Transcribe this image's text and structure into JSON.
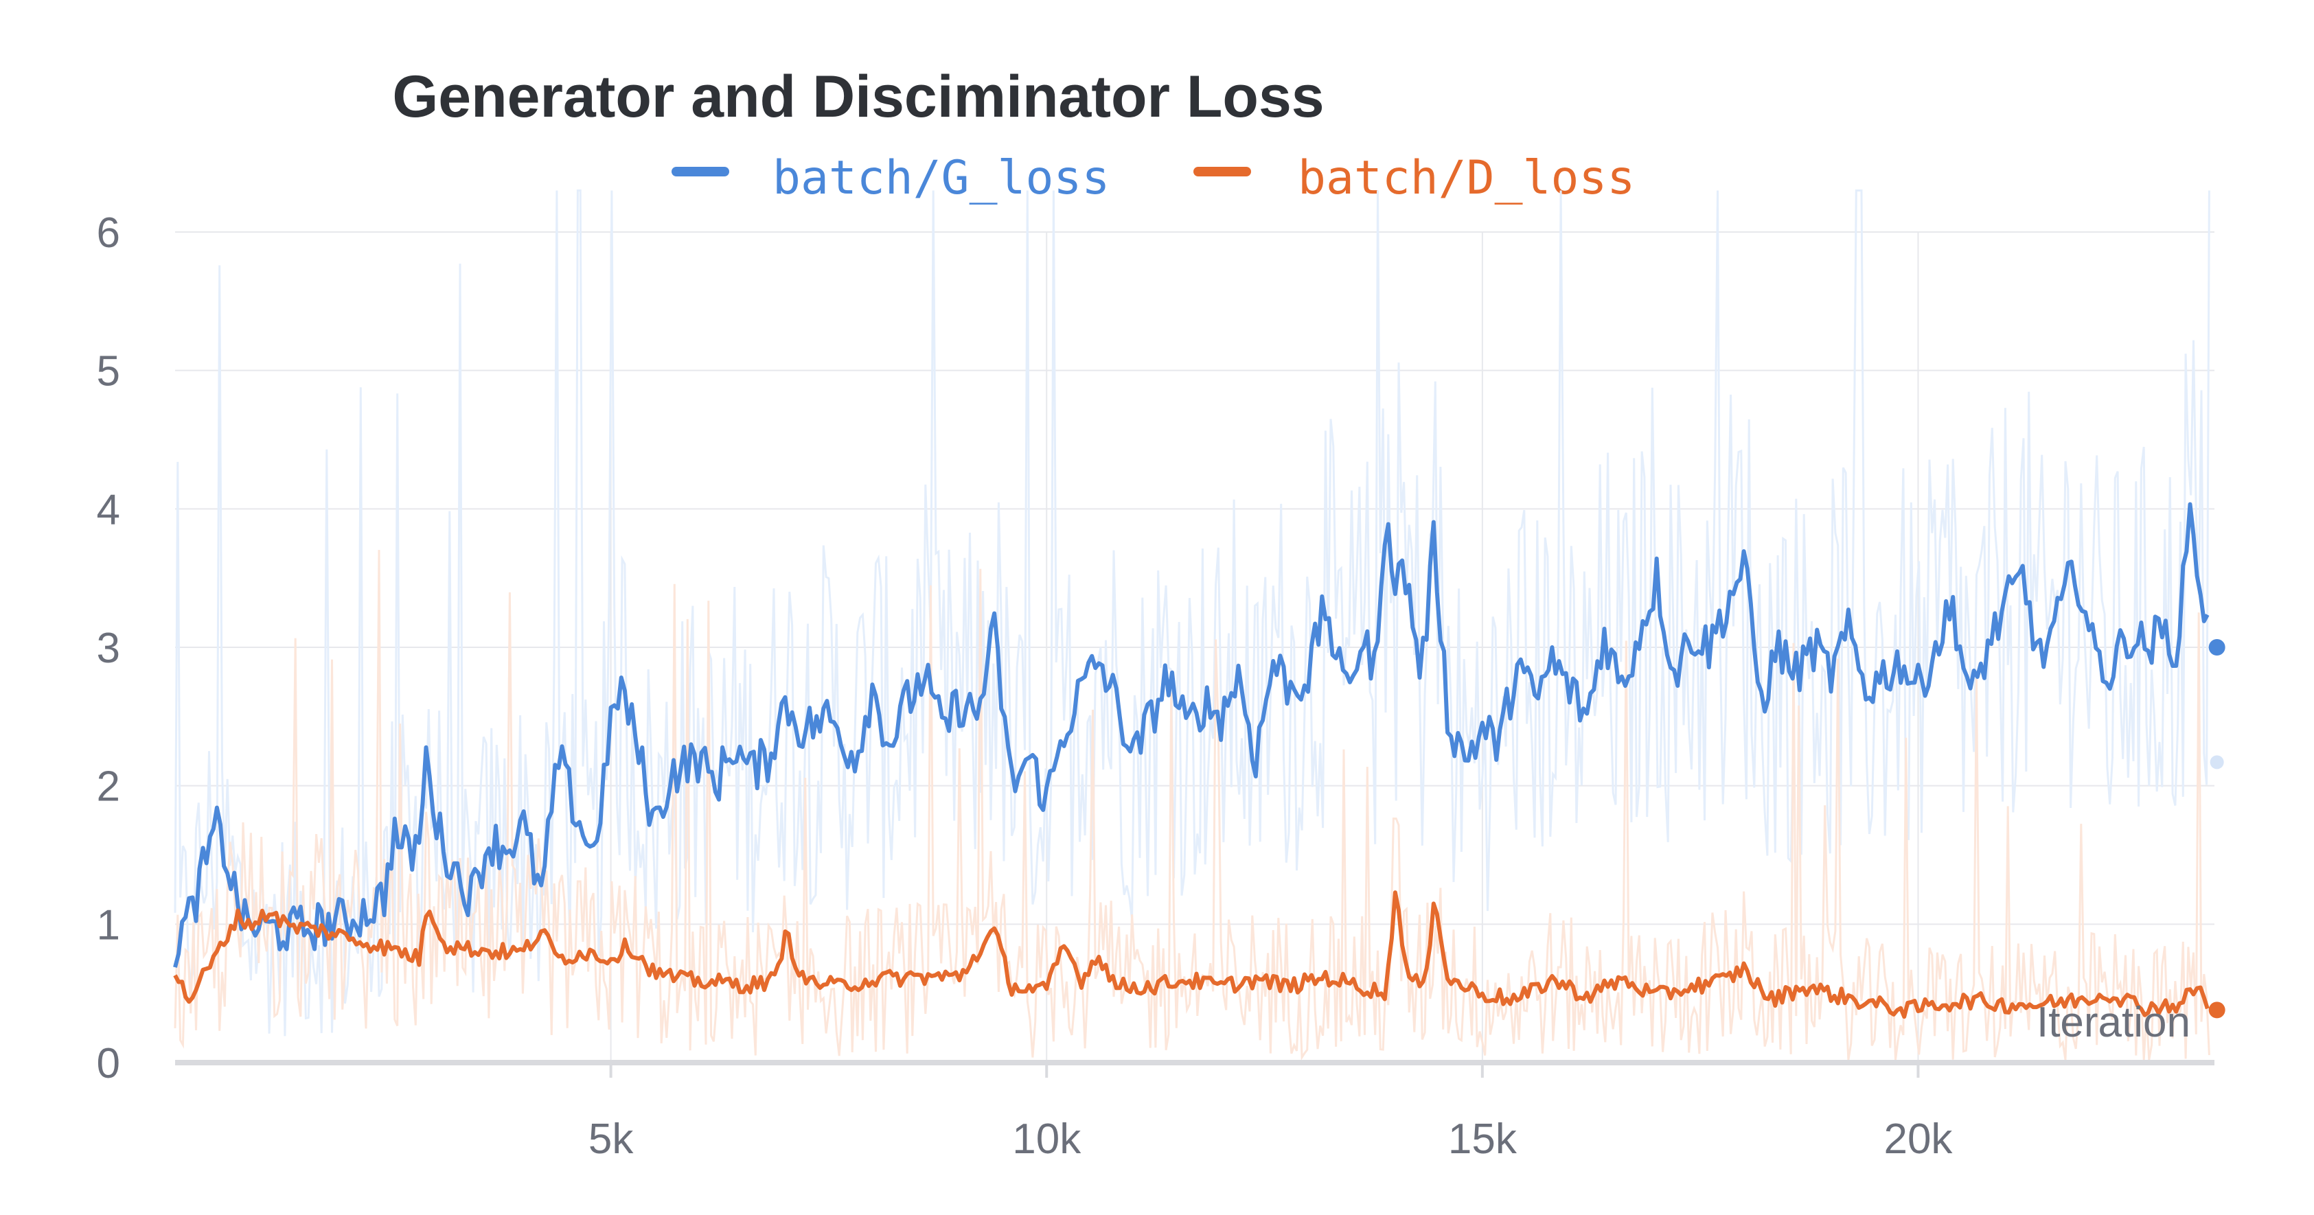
{
  "chart_data": {
    "type": "line",
    "title": "Generator and Disciminator Loss",
    "xlabel": "Iteration",
    "ylabel": "",
    "xlim": [
      0,
      23400
    ],
    "ylim": [
      0,
      6
    ],
    "xticks": [
      5000,
      10000,
      15000,
      20000
    ],
    "xtick_labels": [
      "5k",
      "10k",
      "15k",
      "20k"
    ],
    "yticks": [
      0,
      1,
      2,
      3,
      4,
      5,
      6
    ],
    "ytick_labels": [
      "0",
      "1",
      "2",
      "3",
      "4",
      "5",
      "6"
    ],
    "grid": true,
    "legend_position": "top-center",
    "series": [
      {
        "name": "batch/G_loss",
        "color": "#4a87d9",
        "raw_color": "#e4eefb",
        "points": [
          [
            0,
            0.85
          ],
          [
            200,
            1.1
          ],
          [
            350,
            1.45
          ],
          [
            500,
            1.72
          ],
          [
            650,
            1.3
          ],
          [
            800,
            1.0
          ],
          [
            1000,
            0.97
          ],
          [
            1300,
            0.95
          ],
          [
            1700,
            1.0
          ],
          [
            2000,
            1.03
          ],
          [
            2200,
            1.1
          ],
          [
            2400,
            1.2
          ],
          [
            2500,
            1.65
          ],
          [
            2700,
            1.5
          ],
          [
            2800,
            1.6
          ],
          [
            2900,
            2.3
          ],
          [
            3000,
            1.7
          ],
          [
            3200,
            1.4
          ],
          [
            3400,
            1.2
          ],
          [
            3600,
            1.6
          ],
          [
            3800,
            1.55
          ],
          [
            4000,
            1.7
          ],
          [
            4200,
            1.2
          ],
          [
            4400,
            2.2
          ],
          [
            4600,
            1.8
          ],
          [
            4800,
            1.5
          ],
          [
            5000,
            2.4
          ],
          [
            5100,
            2.75
          ],
          [
            5300,
            2.3
          ],
          [
            5500,
            1.7
          ],
          [
            5700,
            2.1
          ],
          [
            6000,
            2.2
          ],
          [
            6200,
            2.0
          ],
          [
            6400,
            2.3
          ],
          [
            6600,
            2.1
          ],
          [
            6800,
            2.2
          ],
          [
            7000,
            2.6
          ],
          [
            7200,
            2.4
          ],
          [
            7500,
            2.5
          ],
          [
            7800,
            2.2
          ],
          [
            8000,
            2.7
          ],
          [
            8200,
            2.3
          ],
          [
            8400,
            2.6
          ],
          [
            8600,
            2.8
          ],
          [
            8800,
            2.4
          ],
          [
            9000,
            2.6
          ],
          [
            9200,
            2.5
          ],
          [
            9400,
            3.1
          ],
          [
            9600,
            2.0
          ],
          [
            9800,
            2.2
          ],
          [
            10000,
            1.9
          ],
          [
            10200,
            2.4
          ],
          [
            10400,
            2.7
          ],
          [
            10600,
            2.9
          ],
          [
            10800,
            2.6
          ],
          [
            11000,
            2.2
          ],
          [
            11200,
            2.5
          ],
          [
            11400,
            2.8
          ],
          [
            11600,
            2.4
          ],
          [
            11800,
            2.6
          ],
          [
            12000,
            2.5
          ],
          [
            12200,
            2.8
          ],
          [
            12400,
            2.2
          ],
          [
            12600,
            2.9
          ],
          [
            12800,
            2.7
          ],
          [
            13000,
            2.8
          ],
          [
            13200,
            3.3
          ],
          [
            13400,
            2.7
          ],
          [
            13600,
            3.0
          ],
          [
            13800,
            2.9
          ],
          [
            13900,
            4.15
          ],
          [
            14000,
            3.4
          ],
          [
            14100,
            3.6
          ],
          [
            14300,
            2.8
          ],
          [
            14450,
            3.8
          ],
          [
            14600,
            2.5
          ],
          [
            14800,
            2.2
          ],
          [
            15000,
            2.4
          ],
          [
            15200,
            2.3
          ],
          [
            15400,
            2.9
          ],
          [
            15600,
            2.6
          ],
          [
            15800,
            2.9
          ],
          [
            16000,
            2.7
          ],
          [
            16200,
            2.5
          ],
          [
            16400,
            3.1
          ],
          [
            16600,
            2.7
          ],
          [
            16800,
            3.1
          ],
          [
            17000,
            3.5
          ],
          [
            17200,
            2.8
          ],
          [
            17400,
            3.1
          ],
          [
            17600,
            3.0
          ],
          [
            17800,
            3.3
          ],
          [
            18000,
            3.6
          ],
          [
            18200,
            2.6
          ],
          [
            18400,
            3.0
          ],
          [
            18600,
            2.8
          ],
          [
            18800,
            3.0
          ],
          [
            19000,
            2.8
          ],
          [
            19200,
            3.1
          ],
          [
            19400,
            2.7
          ],
          [
            19600,
            2.8
          ],
          [
            19800,
            2.9
          ],
          [
            20000,
            2.7
          ],
          [
            20200,
            3.0
          ],
          [
            20400,
            3.3
          ],
          [
            20600,
            2.6
          ],
          [
            20800,
            3.0
          ],
          [
            21000,
            3.3
          ],
          [
            21200,
            3.5
          ],
          [
            21400,
            2.9
          ],
          [
            21600,
            3.2
          ],
          [
            21800,
            3.6
          ],
          [
            22000,
            3.0
          ],
          [
            22200,
            2.8
          ],
          [
            22400,
            3.1
          ],
          [
            22600,
            3.0
          ],
          [
            22800,
            3.1
          ],
          [
            23000,
            3.0
          ],
          [
            23100,
            4.05
          ],
          [
            23250,
            3.4
          ],
          [
            23350,
            3.0
          ]
        ]
      },
      {
        "name": "batch/D_loss",
        "color": "#e56a2c",
        "raw_color": "#fce6da",
        "points": [
          [
            0,
            0.65
          ],
          [
            150,
            0.45
          ],
          [
            300,
            0.6
          ],
          [
            500,
            0.8
          ],
          [
            700,
            1.05
          ],
          [
            900,
            1.0
          ],
          [
            1100,
            1.1
          ],
          [
            1300,
            0.98
          ],
          [
            1600,
            0.97
          ],
          [
            2000,
            0.9
          ],
          [
            2300,
            0.85
          ],
          [
            2600,
            0.8
          ],
          [
            2800,
            0.75
          ],
          [
            2900,
            1.15
          ],
          [
            3100,
            0.85
          ],
          [
            3400,
            0.82
          ],
          [
            3700,
            0.8
          ],
          [
            4000,
            0.8
          ],
          [
            4200,
            0.95
          ],
          [
            4400,
            0.75
          ],
          [
            4700,
            0.8
          ],
          [
            5000,
            0.75
          ],
          [
            5200,
            0.85
          ],
          [
            5500,
            0.65
          ],
          [
            5800,
            0.6
          ],
          [
            6200,
            0.58
          ],
          [
            6600,
            0.56
          ],
          [
            6900,
            0.6
          ],
          [
            7000,
            0.95
          ],
          [
            7200,
            0.6
          ],
          [
            7600,
            0.55
          ],
          [
            8000,
            0.6
          ],
          [
            8500,
            0.62
          ],
          [
            9000,
            0.62
          ],
          [
            9400,
            0.95
          ],
          [
            9600,
            0.55
          ],
          [
            10000,
            0.52
          ],
          [
            10200,
            0.85
          ],
          [
            10400,
            0.6
          ],
          [
            10600,
            0.78
          ],
          [
            10800,
            0.55
          ],
          [
            11200,
            0.55
          ],
          [
            11600,
            0.6
          ],
          [
            12000,
            0.55
          ],
          [
            12400,
            0.6
          ],
          [
            12800,
            0.55
          ],
          [
            13200,
            0.62
          ],
          [
            13600,
            0.55
          ],
          [
            13900,
            0.5
          ],
          [
            14000,
            1.25
          ],
          [
            14150,
            0.6
          ],
          [
            14350,
            0.55
          ],
          [
            14450,
            1.25
          ],
          [
            14600,
            0.6
          ],
          [
            15000,
            0.5
          ],
          [
            15400,
            0.45
          ],
          [
            15800,
            0.6
          ],
          [
            16200,
            0.48
          ],
          [
            16600,
            0.6
          ],
          [
            17000,
            0.48
          ],
          [
            17400,
            0.55
          ],
          [
            17800,
            0.6
          ],
          [
            18000,
            0.68
          ],
          [
            18300,
            0.45
          ],
          [
            18700,
            0.55
          ],
          [
            19100,
            0.48
          ],
          [
            19500,
            0.42
          ],
          [
            19900,
            0.38
          ],
          [
            20200,
            0.42
          ],
          [
            20600,
            0.45
          ],
          [
            21000,
            0.42
          ],
          [
            21400,
            0.42
          ],
          [
            21800,
            0.45
          ],
          [
            22200,
            0.5
          ],
          [
            22600,
            0.4
          ],
          [
            23000,
            0.42
          ],
          [
            23200,
            0.55
          ],
          [
            23350,
            0.38
          ]
        ]
      }
    ]
  }
}
